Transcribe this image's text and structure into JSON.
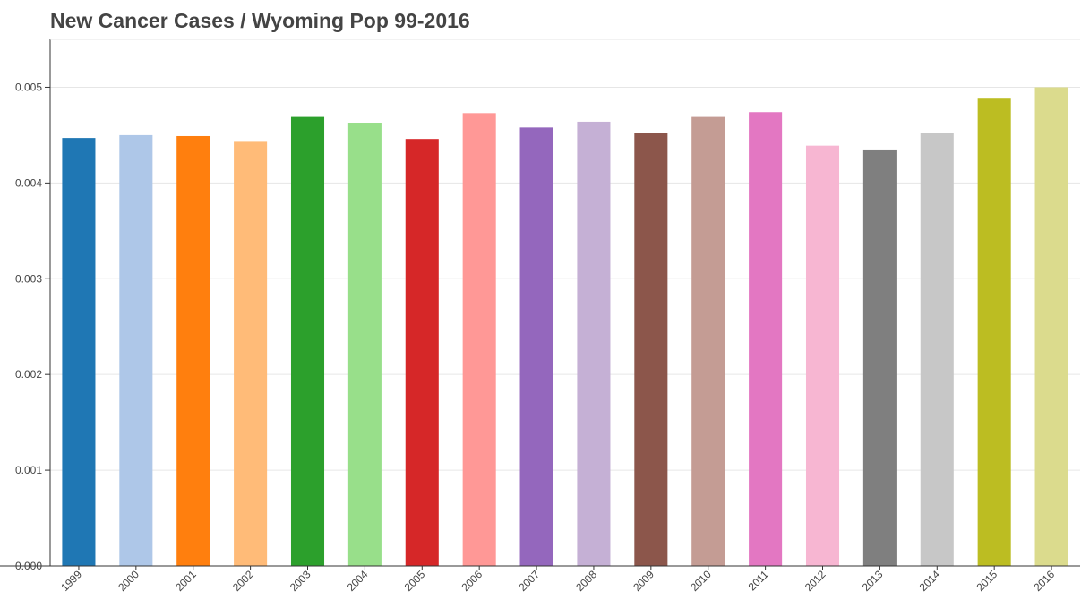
{
  "chart_data": {
    "type": "bar",
    "title": "New Cancer Cases / Wyoming Pop 99-2016",
    "xlabel": "",
    "ylabel": "",
    "categories": [
      "1999",
      "2000",
      "2001",
      "2002",
      "2003",
      "2004",
      "2005",
      "2006",
      "2007",
      "2008",
      "2009",
      "2010",
      "2011",
      "2012",
      "2013",
      "2014",
      "2015",
      "2016"
    ],
    "values": [
      0.00447,
      0.0045,
      0.00449,
      0.00443,
      0.00469,
      0.00463,
      0.00446,
      0.00473,
      0.00458,
      0.00464,
      0.00452,
      0.00469,
      0.00474,
      0.00439,
      0.00435,
      0.00452,
      0.00489,
      0.005
    ],
    "colors": [
      "#1f77b4",
      "#aec7e8",
      "#ff7f0e",
      "#ffbb78",
      "#2ca02c",
      "#98df8a",
      "#d62728",
      "#ff9896",
      "#9467bd",
      "#c5b0d5",
      "#8c564b",
      "#c49c94",
      "#e377c2",
      "#f7b6d2",
      "#7f7f7f",
      "#c7c7c7",
      "#bcbd22",
      "#dbdb8d"
    ],
    "ylim": [
      0,
      0.0055
    ],
    "yticks": [
      0,
      0.001,
      0.002,
      0.003,
      0.004,
      0.005
    ],
    "ytick_labels": [
      "0.000",
      "0.001",
      "0.002",
      "0.003",
      "0.004",
      "0.005"
    ],
    "grid": true,
    "legend": "none"
  }
}
